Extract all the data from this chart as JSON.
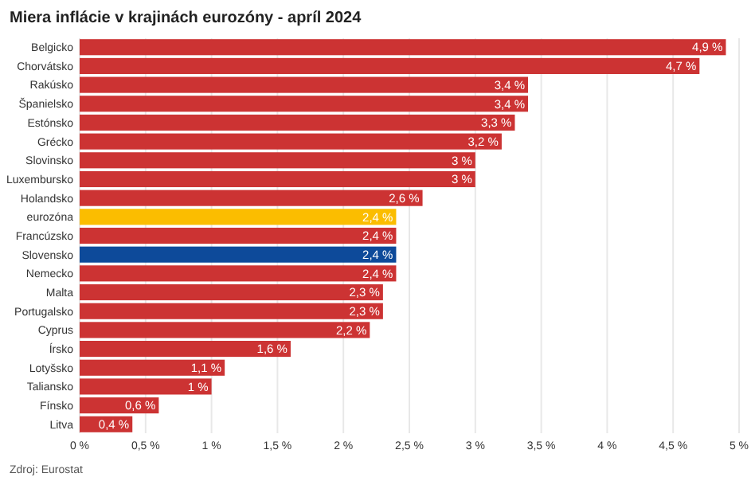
{
  "chart_data": {
    "type": "bar",
    "orientation": "horizontal",
    "title": "Miera inflácie v krajinách eurozóny - apríl 2024",
    "categories": [
      "Belgicko",
      "Chorvátsko",
      "Rakúsko",
      "Španielsko",
      "Estónsko",
      "Grécko",
      "Slovinsko",
      "Luxembursko",
      "Holandsko",
      "eurozóna",
      "Francúzsko",
      "Slovensko",
      "Nemecko",
      "Malta",
      "Portugalsko",
      "Cyprus",
      "Írsko",
      "Lotyšsko",
      "Taliansko",
      "Fínsko",
      "Litva"
    ],
    "values": [
      4.9,
      4.7,
      3.4,
      3.4,
      3.3,
      3.2,
      3,
      3,
      2.6,
      2.4,
      2.4,
      2.4,
      2.4,
      2.3,
      2.3,
      2.2,
      1.6,
      1.1,
      1,
      0.6,
      0.4
    ],
    "value_labels": [
      "4,9 %",
      "4,7 %",
      "3,4 %",
      "3,4 %",
      "3,3 %",
      "3,2 %",
      "3 %",
      "3 %",
      "2,6 %",
      "2,4 %",
      "2,4 %",
      "2,4 %",
      "2,4 %",
      "2,3 %",
      "2,3 %",
      "2,2 %",
      "1,6 %",
      "1,1 %",
      "1 %",
      "0,6 %",
      "0,4 %"
    ],
    "colors": [
      "#cc3333",
      "#cc3333",
      "#cc3333",
      "#cc3333",
      "#cc3333",
      "#cc3333",
      "#cc3333",
      "#cc3333",
      "#cc3333",
      "#fbbd00",
      "#cc3333",
      "#0d4a9a",
      "#cc3333",
      "#cc3333",
      "#cc3333",
      "#cc3333",
      "#cc3333",
      "#cc3333",
      "#cc3333",
      "#cc3333",
      "#cc3333"
    ],
    "xlim": [
      0,
      5
    ],
    "xticks": [
      {
        "value": 0,
        "label": "0 %"
      },
      {
        "value": 0.5,
        "label": "0,5 %"
      },
      {
        "value": 1,
        "label": "1 %"
      },
      {
        "value": 1.5,
        "label": "1,5 %"
      },
      {
        "value": 2,
        "label": "2 %"
      },
      {
        "value": 2.5,
        "label": "2,5 %"
      },
      {
        "value": 3,
        "label": "3 %"
      },
      {
        "value": 3.5,
        "label": "3,5 %"
      },
      {
        "value": 4,
        "label": "4 %"
      },
      {
        "value": 4.5,
        "label": "4,5 %"
      },
      {
        "value": 5,
        "label": "5 %"
      }
    ],
    "grid": "x",
    "annotations": [
      "Zdroj: Eurostat"
    ]
  }
}
